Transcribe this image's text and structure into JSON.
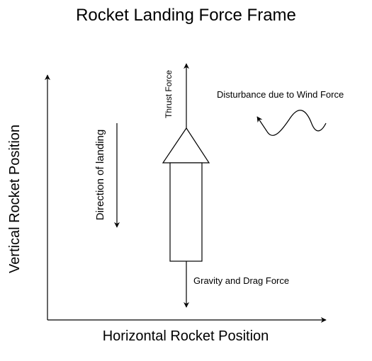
{
  "diagram": {
    "title": "Rocket Landing Force Frame",
    "x_axis_label": "Horizontal Rocket Position",
    "y_axis_label": "Vertical Rocket Position",
    "thrust_label": "Thrust Force",
    "gravity_label": "Gravity and Drag Force",
    "landing_label": "Direction of landing",
    "wind_label": "Disturbance due to Wind Force"
  },
  "colors": {
    "stroke": "#000000",
    "background": "#ffffff"
  }
}
